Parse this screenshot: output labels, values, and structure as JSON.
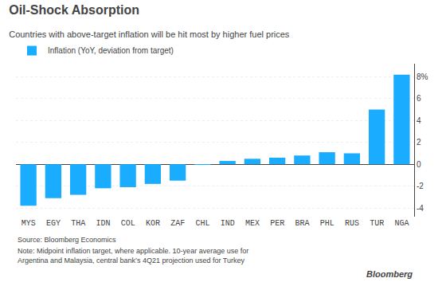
{
  "chart_data": {
    "type": "bar",
    "title": "Oil-Shock Absorption",
    "subtitle": "Countries with above-target inflation will be hit most by higher fuel prices",
    "categories": [
      "MYS",
      "EGY",
      "THA",
      "IDN",
      "COL",
      "KOR",
      "ZAF",
      "CHL",
      "IND",
      "MEX",
      "PER",
      "BRA",
      "PHL",
      "RUS",
      "TUR",
      "NGA"
    ],
    "series": [
      {
        "name": "Inflation (YoY, deviation from target)",
        "color": "#1AADFF",
        "values": [
          -3.8,
          -3.1,
          -2.8,
          -2.2,
          -2.1,
          -1.8,
          -1.5,
          -0.05,
          0.3,
          0.5,
          0.6,
          0.8,
          1.1,
          1.0,
          5.0,
          8.2
        ]
      }
    ],
    "ylim": [
      -4.8,
      9.2
    ],
    "yticks": [
      -4,
      -2,
      0,
      2,
      4,
      6,
      {
        "value": 8,
        "label": "8%"
      }
    ],
    "grid": true,
    "legend": "upper-left",
    "annotations": [
      "Source: Bloomberg Economics",
      "Note: Midpoint inflation target, where applicable. 10-year average use for\nArgentina and Malaysia, central bank’s 4Q21 projection used for Turkey",
      "Bloomberg"
    ]
  }
}
